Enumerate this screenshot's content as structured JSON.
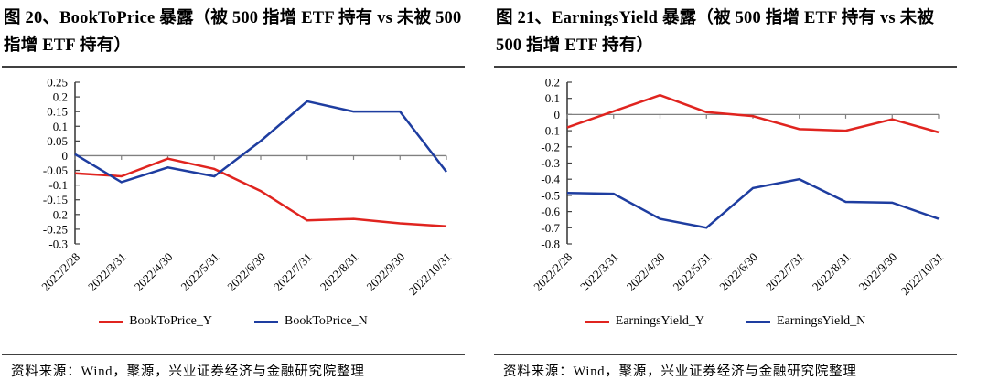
{
  "figures": [
    {
      "title": "图 20、BookToPrice 暴露（被 500 指增 ETF 持有  vs 未被 500 指增 ETF 持有）",
      "source": "资料来源：Wind，聚源，兴业证券经济与金融研究院整理",
      "chart_data": {
        "type": "line",
        "x": [
          "2022/2/28",
          "2022/3/31",
          "2022/4/30",
          "2022/5/31",
          "2022/6/30",
          "2022/7/31",
          "2022/8/31",
          "2022/9/30",
          "2022/10/31"
        ],
        "series": [
          {
            "name": "BookToPrice_Y",
            "color": "#e0241f",
            "values": [
              -0.06,
              -0.07,
              -0.01,
              -0.045,
              -0.12,
              -0.22,
              -0.215,
              -0.23,
              -0.24
            ]
          },
          {
            "name": "BookToPrice_N",
            "color": "#1e3da0",
            "values": [
              0.005,
              -0.09,
              -0.04,
              -0.07,
              0.05,
              0.185,
              0.15,
              0.15,
              -0.055
            ]
          }
        ],
        "ylim": [
          -0.3,
          0.25
        ],
        "ytick_step": 0.05,
        "grid": false,
        "legend_position": "bottom",
        "axis_color": "#3f3f3f",
        "zero_line_color": "#808080"
      }
    },
    {
      "title": "图 21、EarningsYield 暴露（被 500 指增 ETF 持有 vs  未被 500 指增 ETF 持有）",
      "source": "资料来源：Wind，聚源，兴业证券经济与金融研究院整理",
      "chart_data": {
        "type": "line",
        "x": [
          "2022/2/28",
          "2022/3/31",
          "2022/4/30",
          "2022/5/31",
          "2022/6/30",
          "2022/7/31",
          "2022/8/31",
          "2022/9/30",
          "2022/10/31"
        ],
        "series": [
          {
            "name": "EarningsYield_Y",
            "color": "#e0241f",
            "values": [
              -0.08,
              0.02,
              0.12,
              0.015,
              -0.01,
              -0.09,
              -0.1,
              -0.03,
              -0.11
            ]
          },
          {
            "name": "EarningsYield_N",
            "color": "#1e3da0",
            "values": [
              -0.485,
              -0.49,
              -0.645,
              -0.7,
              -0.455,
              -0.4,
              -0.54,
              -0.545,
              -0.645
            ]
          }
        ],
        "ylim": [
          -0.8,
          0.2
        ],
        "ytick_step": 0.1,
        "grid": false,
        "legend_position": "bottom",
        "axis_color": "#3f3f3f",
        "zero_line_color": "#808080"
      }
    }
  ]
}
